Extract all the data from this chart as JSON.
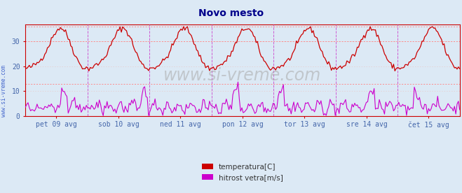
{
  "title": "Novo mesto",
  "title_color": "#00008b",
  "bg_color": "#dce9f5",
  "plot_bg_color": "#dce9f5",
  "grid_color": "#c8b8b8",
  "grid_dotted_color": "#e8c8c8",
  "x_labels": [
    "pet 09 avg",
    "sob 10 avg",
    "ned 11 avg",
    "pon 12 avg",
    "tor 13 avg",
    "sre 14 avg",
    "čet 15 avg"
  ],
  "y_ticks": [
    0,
    10,
    20,
    30
  ],
  "ylim": [
    0,
    37
  ],
  "watermark": "www.si-vreme.com",
  "sidebar_text": "www.si-vreme.com",
  "sidebar_color": "#4466cc",
  "legend": [
    {
      "label": "temperatura[C]",
      "color": "#cc0000"
    },
    {
      "label": "hitrost vetra[m/s]",
      "color": "#cc00cc"
    }
  ],
  "hline_dotted": [
    36,
    30,
    13
  ],
  "vline_color": "#cc44cc",
  "n_points": 336,
  "temp_color": "#cc0000",
  "wind_color": "#cc00cc",
  "axis_color": "#cc0000",
  "tick_label_color": "#4466aa"
}
